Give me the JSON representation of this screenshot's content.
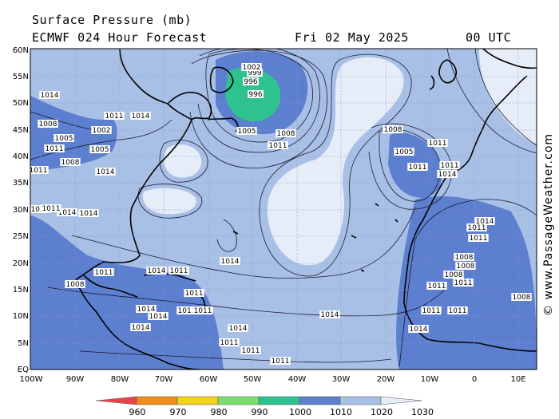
{
  "header": {
    "title": "Surface Pressure (mb)",
    "model": "ECMWF 024 Hour Forecast",
    "date": "Fri 02 May 2025",
    "time": "00 UTC"
  },
  "axes": {
    "lat_labels": [
      "60N",
      "55N",
      "50N",
      "45N",
      "40N",
      "35N",
      "30N",
      "25N",
      "20N",
      "15N",
      "10N",
      "5N",
      "EQ"
    ],
    "lon_labels": [
      "100W",
      "90W",
      "80W",
      "70W",
      "60W",
      "50W",
      "40W",
      "30W",
      "20W",
      "10W",
      "0",
      "10E"
    ]
  },
  "colorbar": {
    "values": [
      "960",
      "970",
      "980",
      "990",
      "1000",
      "1010",
      "1020",
      "1030"
    ],
    "colors": [
      "#e8434a",
      "#f28c1b",
      "#f2d21b",
      "#78e06a",
      "#2ec28f",
      "#5c7fd0",
      "#a8bfe6",
      "#e6ecf8"
    ]
  },
  "pressure_labels": [
    "1014",
    "1008",
    "1005",
    "1002",
    "1011",
    "1005",
    "1011",
    "1014",
    "1008",
    "1011",
    "999",
    "996",
    "996",
    "1002",
    "1005",
    "1008",
    "1011",
    "1011",
    "1005",
    "1008",
    "1011",
    "1011",
    "1014",
    "1014",
    "1014",
    "1011",
    "1011",
    "1014",
    "1014",
    "1014",
    "1011",
    "1008",
    "1011",
    "1011",
    "1011",
    "1014",
    "1014",
    "1014",
    "1014",
    "1014",
    "1011",
    "1011",
    "1011",
    "1011",
    "1011",
    "1014",
    "1011",
    "1011",
    "1008",
    "1008",
    "1011",
    "1011",
    "1011",
    "1011",
    "1014",
    "1008",
    "1008"
  ],
  "credit": "© www.PassageWeather.com",
  "colors": {
    "ocean": "#a8bfe6",
    "high": "#e6ecf8",
    "low": "#5c7fd0",
    "deep_low": "#2ec28f",
    "coast": "#000000"
  }
}
